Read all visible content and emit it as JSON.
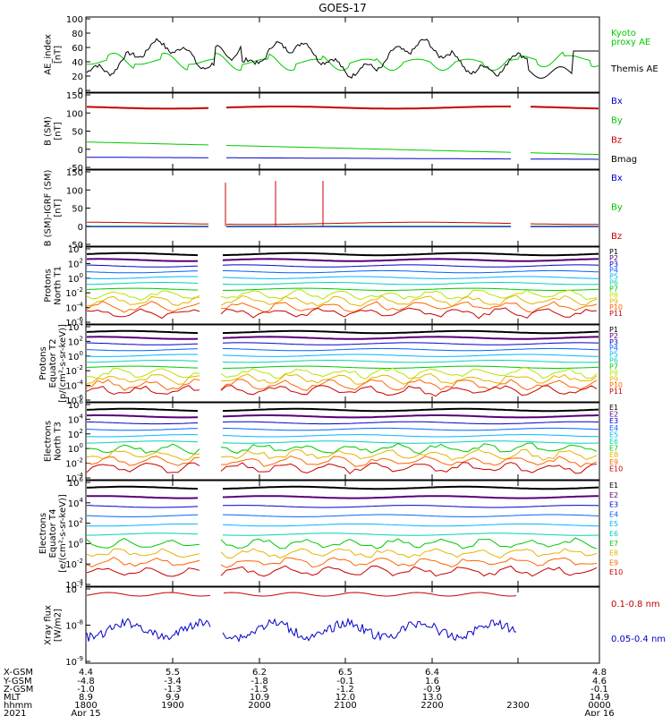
{
  "title": "GOES-17",
  "panels": [
    {
      "id": "ae",
      "ylabel": [
        "AE_index",
        "[nT]"
      ],
      "ticks": [
        "100",
        "80",
        "60",
        "40",
        "20",
        "0"
      ],
      "legend": [
        {
          "text": "Kyoto",
          "color": "#00c800"
        },
        {
          "text": "proxy AE",
          "color": "#00c800"
        },
        {
          "text": "Themis AE",
          "color": "#000000"
        }
      ]
    },
    {
      "id": "b_sm",
      "ylabel": [
        "B (SM)",
        "[nT]"
      ],
      "ticks": [
        "150",
        "100",
        "50",
        "0",
        "-50"
      ],
      "legend": [
        {
          "text": "Bx",
          "color": "#0000c8"
        },
        {
          "text": "By",
          "color": "#00c800"
        },
        {
          "text": "Bz",
          "color": "#c80000"
        },
        {
          "text": "Bmag",
          "color": "#000000"
        }
      ]
    },
    {
      "id": "b_igrf",
      "ylabel": [
        "B (SM)-IGRF (SM)",
        "[nT]"
      ],
      "ticks": [
        "150",
        "100",
        "50",
        "0",
        "-50"
      ],
      "legend": [
        {
          "text": "Bx",
          "color": "#0000c8"
        },
        {
          "text": "By",
          "color": "#00c800"
        },
        {
          "text": "Bz",
          "color": "#c80000"
        }
      ]
    },
    {
      "id": "p_t1",
      "ylabel": [
        "Protons",
        "North T1"
      ],
      "ticks": [
        "10^4",
        "10^2",
        "10^0",
        "10^-2",
        "10^-4",
        "10^-6"
      ],
      "legend": [
        {
          "text": "P1",
          "color": "#000000"
        },
        {
          "text": "P2",
          "color": "#5a0078"
        },
        {
          "text": "P3",
          "color": "#0000c8"
        },
        {
          "text": "P4",
          "color": "#0064ff"
        },
        {
          "text": "P5",
          "color": "#00b4ff"
        },
        {
          "text": "P6",
          "color": "#00d2b4"
        },
        {
          "text": "P7",
          "color": "#00c800"
        },
        {
          "text": "P8",
          "color": "#b4e600"
        },
        {
          "text": "P9",
          "color": "#e6b400"
        },
        {
          "text": "P10",
          "color": "#ff6400"
        },
        {
          "text": "P11",
          "color": "#c80000"
        }
      ]
    },
    {
      "id": "p_t2",
      "ylabel": [
        "Protons",
        "Equator T2",
        "[p/(cm²-s-sr-keV)]"
      ],
      "ticks": [
        "10^4",
        "10^2",
        "10^0",
        "10^-2",
        "10^-4",
        "10^-6"
      ],
      "legend": [
        {
          "text": "P1",
          "color": "#000000"
        },
        {
          "text": "P2",
          "color": "#5a0078"
        },
        {
          "text": "P3",
          "color": "#0000c8"
        },
        {
          "text": "P4",
          "color": "#0064ff"
        },
        {
          "text": "P5",
          "color": "#00b4ff"
        },
        {
          "text": "P6",
          "color": "#00d2b4"
        },
        {
          "text": "P7",
          "color": "#00c800"
        },
        {
          "text": "P8",
          "color": "#b4e600"
        },
        {
          "text": "P9",
          "color": "#e6b400"
        },
        {
          "text": "P10",
          "color": "#ff6400"
        },
        {
          "text": "P11",
          "color": "#c80000"
        }
      ]
    },
    {
      "id": "e_t3",
      "ylabel": [
        "Electrons",
        "North T3"
      ],
      "ticks": [
        "10^6",
        "10^4",
        "10^2",
        "10^0",
        "10^-2",
        "10^-4"
      ],
      "legend": [
        {
          "text": "E1",
          "color": "#000000"
        },
        {
          "text": "E2",
          "color": "#5a0078"
        },
        {
          "text": "E3",
          "color": "#0000c8"
        },
        {
          "text": "E4",
          "color": "#0064ff"
        },
        {
          "text": "E5",
          "color": "#00b4ff"
        },
        {
          "text": "E6",
          "color": "#00d2b4"
        },
        {
          "text": "E7",
          "color": "#00c800"
        },
        {
          "text": "E8",
          "color": "#e6b400"
        },
        {
          "text": "E9",
          "color": "#ff6400"
        },
        {
          "text": "E10",
          "color": "#c80000"
        }
      ]
    },
    {
      "id": "e_t4",
      "ylabel": [
        "Electrons",
        "Equator T4",
        "[e/(cm²-s-sr-keV)]"
      ],
      "ticks": [
        "10^6",
        "10^4",
        "10^2",
        "10^0",
        "10^-2",
        "10^-4"
      ],
      "legend": [
        {
          "text": "E1",
          "color": "#000000"
        },
        {
          "text": "E2",
          "color": "#5a0078"
        },
        {
          "text": "E3",
          "color": "#0000c8"
        },
        {
          "text": "E4",
          "color": "#0064ff"
        },
        {
          "text": "E5",
          "color": "#00b4ff"
        },
        {
          "text": "E6",
          "color": "#00d2b4"
        },
        {
          "text": "E7",
          "color": "#00c800"
        },
        {
          "text": "E8",
          "color": "#e6b400"
        },
        {
          "text": "E9",
          "color": "#ff6400"
        },
        {
          "text": "E10",
          "color": "#c80000"
        }
      ]
    },
    {
      "id": "xray",
      "ylabel": [
        "Xray flux",
        "[W/m2]"
      ],
      "ticks": [
        "10^-7",
        "10^-8",
        "10^-9"
      ],
      "legend": [
        {
          "text": "0.1-0.8 nm",
          "color": "#c80000"
        },
        {
          "text": "0.05-0.4 nm",
          "color": "#0000c8"
        }
      ]
    }
  ],
  "footer": {
    "row_labels": [
      "X-GSM",
      "Y-GSM",
      "Z-GSM",
      "MLT",
      "hhmm",
      "2021"
    ],
    "columns": [
      {
        "values": [
          "4.4",
          "-4.8",
          "-1.0",
          "8.9",
          "1800",
          "Apr 15"
        ]
      },
      {
        "values": [
          "5.5",
          "-3.4",
          "-1.3",
          "9.9",
          "1900",
          ""
        ]
      },
      {
        "values": [
          "6.2",
          "-1.8",
          "-1.5",
          "10.9",
          "2000",
          ""
        ]
      },
      {
        "values": [
          "6.5",
          "-0.1",
          "-1.2",
          "12.0",
          "2100",
          ""
        ]
      },
      {
        "values": [
          "6.4",
          "1.6",
          "-0.9",
          "13.0",
          "2200",
          ""
        ]
      },
      {
        "values": [
          "",
          "",
          "",
          "",
          "2300",
          ""
        ]
      },
      {
        "values": [
          "4.8",
          "4.6",
          "-0.1",
          "14.9",
          "0000",
          "Apr 16"
        ]
      }
    ]
  },
  "chart_data": {
    "type": "line",
    "title": "GOES-17",
    "x": [
      "1800",
      "1900",
      "2000",
      "2100",
      "2200",
      "2300",
      "0000"
    ],
    "x_dates": [
      "Apr 15",
      "Apr 16"
    ],
    "series": [
      {
        "panel": "AE index",
        "name": "Kyoto proxy AE",
        "color": "#00c800",
        "values": [
          40,
          38,
          45,
          38,
          58,
          60,
          82
        ]
      },
      {
        "panel": "AE index",
        "name": "Themis AE",
        "color": "#000000",
        "values": [
          45,
          50,
          70,
          45,
          45,
          30,
          50
        ]
      },
      {
        "panel": "B (SM)",
        "name": "Bz",
        "color": "#c80000",
        "values": [
          113,
          112,
          115,
          118,
          115,
          113,
          118
        ]
      },
      {
        "panel": "B (SM)",
        "name": "By",
        "color": "#00c800",
        "values": [
          20,
          15,
          10,
          3,
          -3,
          -8,
          -12
        ]
      },
      {
        "panel": "B (SM)",
        "name": "Bx",
        "color": "#0000c8",
        "values": [
          -22,
          -22,
          -25,
          -25,
          -25,
          -25,
          -25
        ]
      },
      {
        "panel": "B (SM)-IGRF (SM)",
        "name": "Bz",
        "color": "#c80000",
        "values": [
          10,
          8,
          8,
          10,
          15,
          10,
          12
        ]
      },
      {
        "panel": "B (SM)-IGRF (SM)",
        "name": "By",
        "color": "#00c800",
        "values": [
          0,
          0,
          0,
          0,
          0,
          0,
          0
        ]
      },
      {
        "panel": "B (SM)-IGRF (SM)",
        "name": "Bx",
        "color": "#0000c8",
        "values": [
          0,
          0,
          0,
          0,
          0,
          0,
          0
        ]
      },
      {
        "panel": "Xray flux",
        "name": "0.1-0.8 nm",
        "color": "#c80000",
        "values": [
          8e-08,
          8e-08,
          8e-08,
          8e-08,
          8e-08,
          8e-08,
          null
        ]
      },
      {
        "panel": "Xray flux",
        "name": "0.05-0.4 nm",
        "color": "#0000c8",
        "values": [
          4e-09,
          3.5e-09,
          3e-09,
          3e-09,
          3.2e-09,
          3e-09,
          null
        ]
      }
    ],
    "yranges": {
      "AE index": [
        0,
        100
      ],
      "B (SM)": [
        -50,
        150
      ],
      "B (SM)-IGRF (SM)": [
        -50,
        150
      ],
      "Protons North T1": [
        "1e-6",
        "1e4"
      ],
      "Protons Equator T2": [
        "1e-6",
        "1e4"
      ],
      "Electrons North T3": [
        "1e-4",
        "1e6"
      ],
      "Electrons Equator T4": [
        "1e-4",
        "1e6"
      ],
      "Xray flux": [
        "1e-9",
        "1e-7"
      ]
    },
    "grid": false
  }
}
